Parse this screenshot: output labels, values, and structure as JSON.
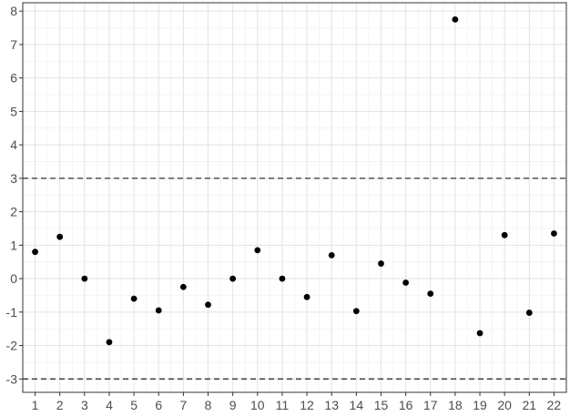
{
  "chart_data": {
    "type": "scatter",
    "title": "",
    "xlabel": "",
    "ylabel": "",
    "x": [
      1,
      2,
      3,
      4,
      5,
      6,
      7,
      8,
      9,
      10,
      11,
      12,
      13,
      14,
      15,
      16,
      17,
      18,
      19,
      20,
      21,
      22
    ],
    "y": [
      0.8,
      1.25,
      0.0,
      -1.9,
      -0.6,
      -0.95,
      -0.25,
      -0.78,
      0.0,
      0.85,
      0.0,
      -0.55,
      0.7,
      -0.97,
      0.45,
      -0.12,
      -0.45,
      7.75,
      -1.63,
      1.3,
      -1.02,
      1.35
    ],
    "xlim": [
      0.5,
      22.5
    ],
    "ylim": [
      -3.4,
      8.25
    ],
    "x_ticks": [
      1,
      2,
      3,
      4,
      5,
      6,
      7,
      8,
      9,
      10,
      11,
      12,
      13,
      14,
      15,
      16,
      17,
      18,
      19,
      20,
      21,
      22
    ],
    "y_ticks": [
      -3,
      -2,
      -1,
      0,
      1,
      2,
      3,
      4,
      5,
      6,
      7,
      8
    ],
    "reference_lines": [
      3,
      -3
    ],
    "grid": true,
    "legend": "none",
    "colors": {
      "point": "#000000",
      "grid": "#e3e3e3",
      "reference_line": "#333333"
    }
  }
}
